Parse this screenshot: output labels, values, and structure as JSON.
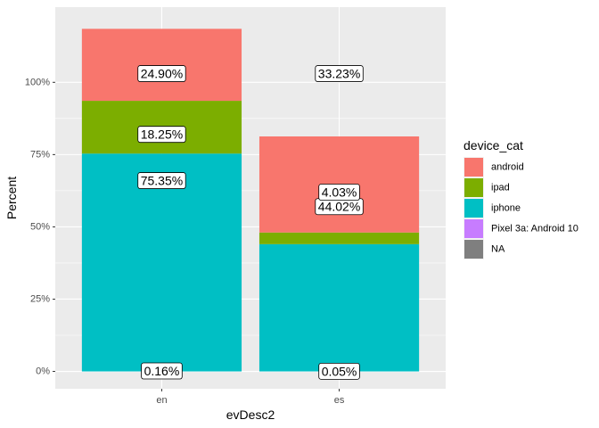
{
  "chart_data": {
    "type": "bar",
    "stacked": true,
    "xlabel": "evDesc2",
    "ylabel": "Percent",
    "categories": [
      "en",
      "es"
    ],
    "ylim": [
      -0.06,
      1.26
    ],
    "yticks": [
      0,
      0.25,
      0.5,
      0.75,
      1.0
    ],
    "ytick_labels": [
      "0%",
      "25%",
      "50%",
      "75%",
      "100%"
    ],
    "grid": true,
    "legend_position": "right",
    "legend_title": "device_cat",
    "legend": [
      {
        "name": "android",
        "color": "#F8766D"
      },
      {
        "name": "ipad",
        "color": "#7CAE00"
      },
      {
        "name": "iphone",
        "color": "#00BFC4"
      },
      {
        "name": "Pixel 3a: Android 10",
        "color": "#C77CFF"
      },
      {
        "name": "NA",
        "color": "#7F7F7F"
      }
    ],
    "series": [
      {
        "name": "iphone",
        "color": "#00BFC4",
        "values": [
          0.7535,
          0.4402
        ]
      },
      {
        "name": "ipad",
        "color": "#7CAE00",
        "values": [
          0.1825,
          0.0403
        ]
      },
      {
        "name": "android",
        "color": "#F8766D",
        "values": [
          0.249,
          0.3323
        ]
      }
    ],
    "data_labels": [
      {
        "category": "en",
        "y": 0.0016,
        "text": "0.16%"
      },
      {
        "category": "en",
        "y": 0.66,
        "text": "75.35%"
      },
      {
        "category": "en",
        "y": 0.82,
        "text": "18.25%"
      },
      {
        "category": "en",
        "y": 1.03,
        "text": "24.90%"
      },
      {
        "category": "es",
        "y": 0.0005,
        "text": "0.05%"
      },
      {
        "category": "es",
        "y": 0.57,
        "text": "44.02%"
      },
      {
        "category": "es",
        "y": 0.62,
        "text": "4.03%"
      },
      {
        "category": "es",
        "y": 1.03,
        "text": "33.23%"
      }
    ]
  }
}
